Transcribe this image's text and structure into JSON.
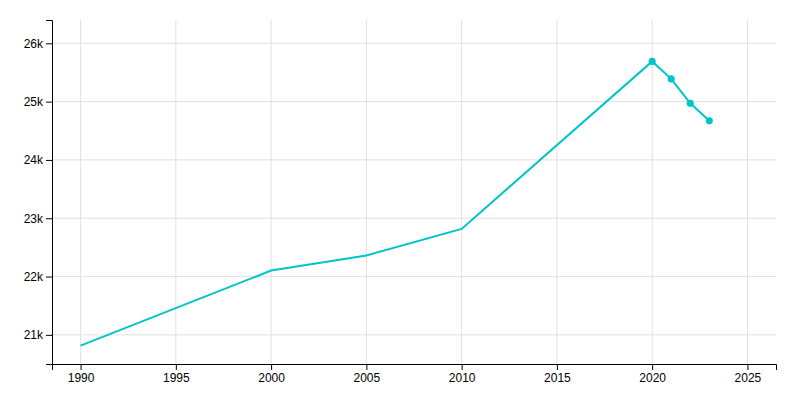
{
  "chart_data": {
    "type": "line",
    "x": [
      1990,
      2000,
      2005,
      2010,
      2020,
      2021,
      2022,
      2023
    ],
    "series": [
      {
        "color": "#00C5C8",
        "line_style": "solid",
        "marker": "none",
        "values": [
          20816,
          22102,
          22362,
          22817,
          25690,
          25390,
          24971,
          24671
        ]
      },
      {
        "color": "#00C5C8",
        "line_style": "none",
        "marker": "circle",
        "values": [
          null,
          null,
          null,
          null,
          25690,
          25390,
          24971,
          24671
        ]
      }
    ],
    "xlim": [
      1988.5,
      2026.5
    ],
    "xticks": [
      1990,
      1995,
      2000,
      2005,
      2010,
      2015,
      2020,
      2025
    ],
    "ylim": [
      20500,
      26400
    ],
    "yticks": [
      {
        "value": 21000,
        "label": "21k"
      },
      {
        "value": 22000,
        "label": "22k"
      },
      {
        "value": 23000,
        "label": "23k"
      },
      {
        "value": 24000,
        "label": "24k"
      },
      {
        "value": 25000,
        "label": "25k"
      },
      {
        "value": 26000,
        "label": "26k"
      }
    ],
    "grid": true
  }
}
